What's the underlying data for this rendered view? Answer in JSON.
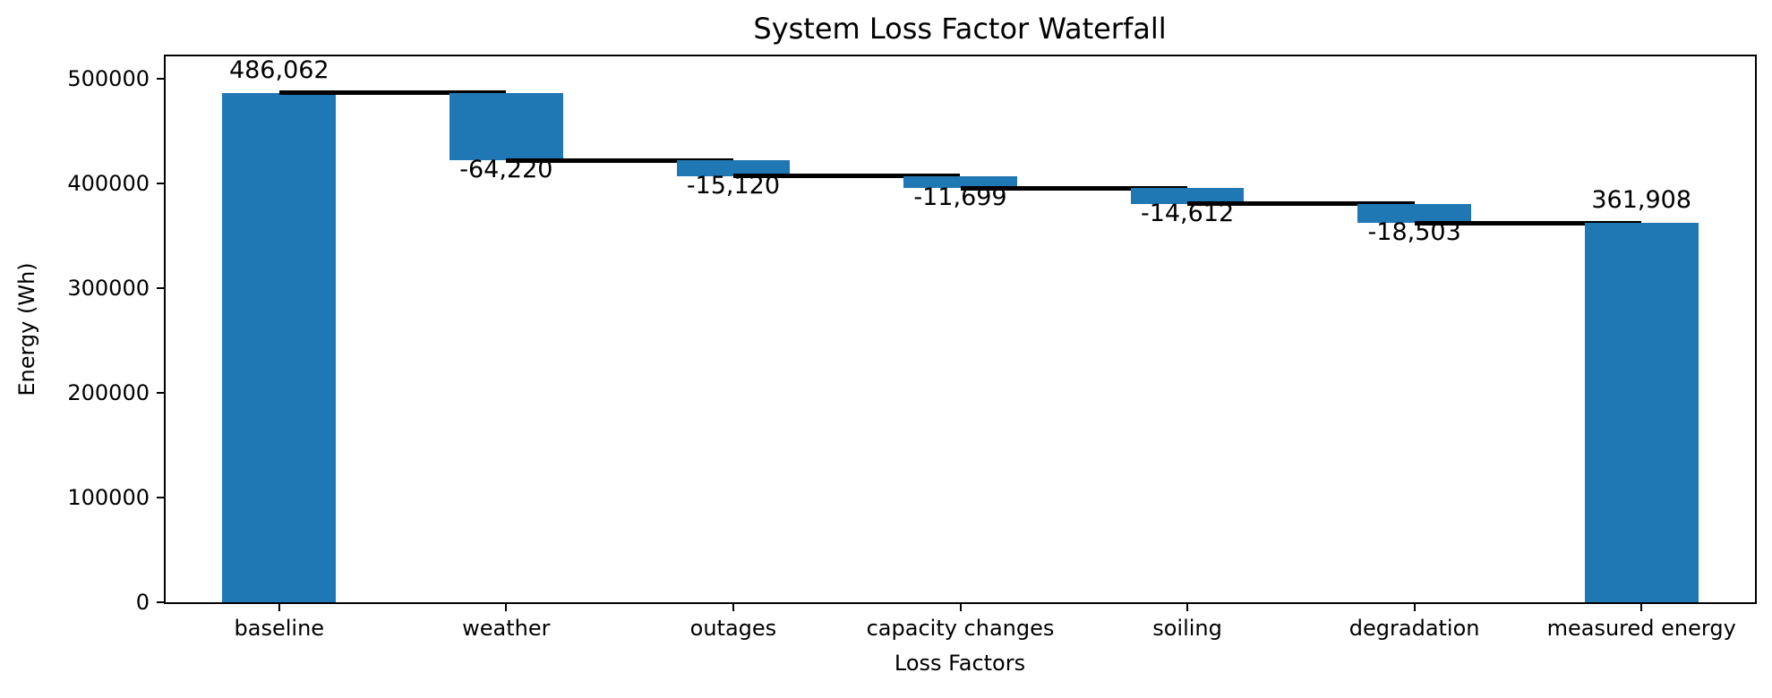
{
  "chart_data": {
    "type": "bar",
    "subtype": "waterfall",
    "title": "System Loss Factor Waterfall",
    "xlabel": "Loss Factors",
    "ylabel": "Energy (Wh)",
    "categories": [
      "baseline",
      "weather",
      "outages",
      "capacity changes",
      "soiling",
      "degradation",
      "measured energy"
    ],
    "values": [
      486062,
      -64220,
      -15120,
      -11699,
      -14612,
      -18503,
      361908
    ],
    "bar_labels": [
      "486,062",
      "-64,220",
      "-15,120",
      "-11,699",
      "-14,612",
      "-18,503",
      "361,908"
    ],
    "cumulative_levels": [
      486062,
      421842,
      406722,
      395023,
      380411,
      361908,
      361908
    ],
    "total_bar_indices": [
      0,
      6
    ],
    "ylim": [
      0,
      520930
    ],
    "yticks": [
      0,
      100000,
      200000,
      300000,
      400000,
      500000
    ],
    "ytick_labels": [
      "0",
      "100000",
      "200000",
      "300000",
      "400000",
      "500000"
    ],
    "bar_width_frac": 0.5,
    "bar_color": "#1f77b4",
    "connector_color": "#000000",
    "text_color": "#000000",
    "grid": false,
    "legend": "none"
  }
}
